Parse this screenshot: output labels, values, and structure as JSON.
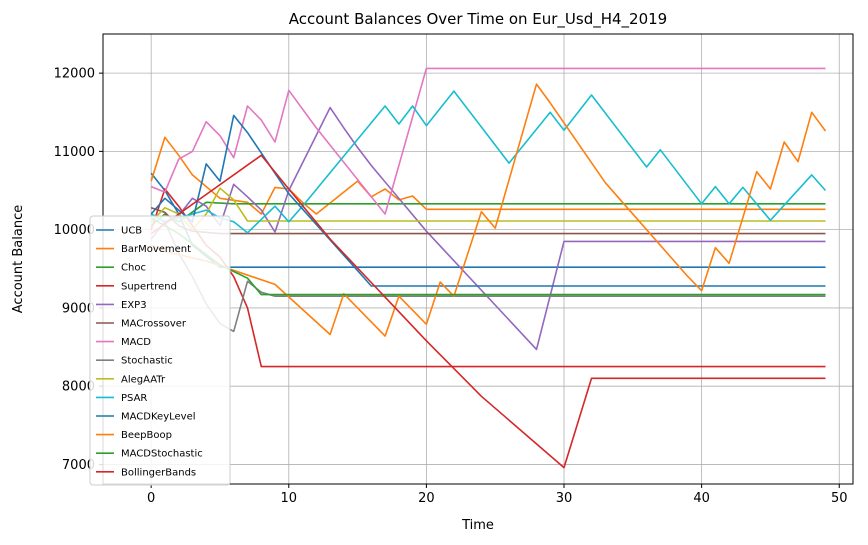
{
  "chart_data": {
    "type": "line",
    "title": "Account Balances Over Time on Eur_Usd_H4_2019",
    "xlabel": "Time",
    "ylabel": "Account Balance",
    "xlim": [
      -3.5,
      51
    ],
    "ylim": [
      6750,
      12500
    ],
    "xticks": [
      0,
      10,
      20,
      30,
      40,
      50
    ],
    "yticks": [
      7000,
      8000,
      9000,
      10000,
      11000,
      12000
    ],
    "grid": true,
    "legend_position": "left",
    "series": [
      {
        "name": "UCB",
        "color": "#1f77b4",
        "points": [
          [
            0,
            10720
          ],
          [
            1,
            10500
          ],
          [
            2,
            10200
          ],
          [
            3,
            9800
          ],
          [
            5,
            9520
          ],
          [
            49,
            9520
          ]
        ]
      },
      {
        "name": "BarMovement",
        "color": "#ff7f0e",
        "points": [
          [
            0,
            10620
          ],
          [
            1,
            11180
          ],
          [
            2,
            10950
          ],
          [
            3,
            10700
          ],
          [
            5,
            10400
          ],
          [
            7,
            10350
          ],
          [
            8,
            10200
          ],
          [
            9,
            10540
          ],
          [
            10,
            10520
          ],
          [
            11,
            10350
          ],
          [
            12,
            10200
          ],
          [
            15,
            10620
          ],
          [
            16,
            10420
          ],
          [
            17,
            10520
          ],
          [
            18,
            10380
          ],
          [
            19,
            10430
          ],
          [
            20,
            10260
          ],
          [
            49,
            10260
          ]
        ]
      },
      {
        "name": "Choc",
        "color": "#2ca02c",
        "points": [
          [
            0,
            10050
          ],
          [
            1,
            10200
          ],
          [
            2,
            10100
          ],
          [
            4,
            10350
          ],
          [
            6,
            10330
          ],
          [
            49,
            10330
          ]
        ]
      },
      {
        "name": "Supertrend",
        "color": "#d62728",
        "points": [
          [
            0,
            10000
          ],
          [
            1,
            10520
          ],
          [
            2,
            10300
          ],
          [
            3,
            10050
          ],
          [
            4,
            9800
          ],
          [
            5,
            9650
          ],
          [
            6,
            9400
          ],
          [
            7,
            9000
          ],
          [
            8,
            8250
          ],
          [
            49,
            8250
          ]
        ]
      },
      {
        "name": "EXP3",
        "color": "#9467bd",
        "points": [
          [
            0,
            9880
          ],
          [
            1,
            10100
          ],
          [
            2,
            10180
          ],
          [
            3,
            10400
          ],
          [
            4,
            10300
          ],
          [
            5,
            10050
          ],
          [
            6,
            10580
          ],
          [
            7,
            10420
          ],
          [
            8,
            10250
          ],
          [
            9,
            9970
          ],
          [
            10,
            10500
          ],
          [
            13,
            11560
          ],
          [
            14,
            11300
          ],
          [
            15,
            11050
          ],
          [
            16,
            10820
          ],
          [
            20,
            9980
          ],
          [
            28,
            8470
          ],
          [
            30,
            9850
          ],
          [
            49,
            9850
          ]
        ]
      },
      {
        "name": "MACrossover",
        "color": "#8c564b",
        "points": [
          [
            0,
            10280
          ],
          [
            1,
            10220
          ],
          [
            2,
            10050
          ],
          [
            3,
            9980
          ],
          [
            5,
            9950
          ],
          [
            49,
            9950
          ]
        ]
      },
      {
        "name": "MACD",
        "color": "#e377c2",
        "points": [
          [
            0,
            10550
          ],
          [
            1,
            10480
          ],
          [
            2,
            10900
          ],
          [
            3,
            11000
          ],
          [
            4,
            11380
          ],
          [
            5,
            11200
          ],
          [
            6,
            10920
          ],
          [
            7,
            11580
          ],
          [
            8,
            11400
          ],
          [
            9,
            11120
          ],
          [
            10,
            11780
          ],
          [
            12,
            11300
          ],
          [
            17,
            10200
          ],
          [
            20,
            12060
          ],
          [
            49,
            12060
          ]
        ]
      },
      {
        "name": "Stochastic",
        "color": "#7f7f7f",
        "points": [
          [
            0,
            10200
          ],
          [
            1,
            10100
          ],
          [
            2,
            9700
          ],
          [
            3,
            9400
          ],
          [
            4,
            9050
          ],
          [
            5,
            8800
          ],
          [
            6,
            8700
          ],
          [
            7,
            9340
          ],
          [
            8,
            9200
          ],
          [
            9,
            9150
          ],
          [
            49,
            9150
          ]
        ]
      },
      {
        "name": "AlegAATr",
        "color": "#bcbd22",
        "points": [
          [
            0,
            10100
          ],
          [
            1,
            10280
          ],
          [
            2,
            10200
          ],
          [
            3,
            10000
          ],
          [
            4,
            10200
          ],
          [
            5,
            10530
          ],
          [
            6,
            10380
          ],
          [
            7,
            10110
          ],
          [
            49,
            10110
          ]
        ]
      },
      {
        "name": "PSAR",
        "color": "#17becf",
        "points": [
          [
            0,
            10200
          ],
          [
            1,
            10100
          ],
          [
            4,
            10250
          ],
          [
            5,
            10150
          ],
          [
            6,
            10100
          ],
          [
            7,
            9960
          ],
          [
            9,
            10300
          ],
          [
            10,
            10100
          ],
          [
            11,
            10300
          ],
          [
            17,
            11580
          ],
          [
            18,
            11350
          ],
          [
            19,
            11580
          ],
          [
            20,
            11330
          ],
          [
            22,
            11770
          ],
          [
            26,
            10850
          ],
          [
            29,
            11500
          ],
          [
            30,
            11270
          ],
          [
            32,
            11720
          ],
          [
            36,
            10800
          ],
          [
            37,
            11020
          ],
          [
            40,
            10330
          ],
          [
            41,
            10550
          ],
          [
            42,
            10330
          ],
          [
            43,
            10540
          ],
          [
            45,
            10120
          ],
          [
            48,
            10700
          ],
          [
            49,
            10500
          ]
        ]
      },
      {
        "name": "MACDKeyLevel",
        "color": "#1f77b4",
        "points": [
          [
            0,
            10200
          ],
          [
            1,
            10400
          ],
          [
            2,
            10250
          ],
          [
            3,
            10100
          ],
          [
            4,
            10840
          ],
          [
            5,
            10620
          ],
          [
            6,
            11460
          ],
          [
            7,
            11240
          ],
          [
            10,
            10460
          ],
          [
            16,
            9280
          ],
          [
            49,
            9280
          ]
        ]
      },
      {
        "name": "BeepBoop",
        "color": "#ff7f0e",
        "points": [
          [
            0,
            9800
          ],
          [
            1,
            9720
          ],
          [
            4,
            9600
          ],
          [
            9,
            9300
          ],
          [
            13,
            8660
          ],
          [
            14,
            9180
          ],
          [
            15,
            9000
          ],
          [
            17,
            8640
          ],
          [
            18,
            9150
          ],
          [
            20,
            8790
          ],
          [
            21,
            9330
          ],
          [
            22,
            9150
          ],
          [
            24,
            10230
          ],
          [
            25,
            10020
          ],
          [
            28,
            11860
          ],
          [
            29,
            11620
          ],
          [
            33,
            10600
          ],
          [
            36,
            10000
          ],
          [
            39,
            9400
          ],
          [
            40,
            9220
          ],
          [
            41,
            9770
          ],
          [
            42,
            9570
          ],
          [
            44,
            10740
          ],
          [
            45,
            10520
          ],
          [
            46,
            11120
          ],
          [
            47,
            10870
          ],
          [
            48,
            11500
          ],
          [
            49,
            11260
          ]
        ]
      },
      {
        "name": "MACDStochastic",
        "color": "#2ca02c",
        "points": [
          [
            0,
            10150
          ],
          [
            2,
            9950
          ],
          [
            5,
            9550
          ],
          [
            7,
            9380
          ],
          [
            8,
            9170
          ],
          [
            49,
            9170
          ]
        ]
      },
      {
        "name": "BollingerBands",
        "color": "#d62728",
        "points": [
          [
            0,
            9950
          ],
          [
            8,
            10950
          ],
          [
            10,
            10520
          ],
          [
            13,
            9880
          ],
          [
            20,
            8580
          ],
          [
            24,
            7870
          ],
          [
            30,
            6960
          ],
          [
            32,
            8100
          ],
          [
            49,
            8100
          ]
        ]
      }
    ]
  }
}
